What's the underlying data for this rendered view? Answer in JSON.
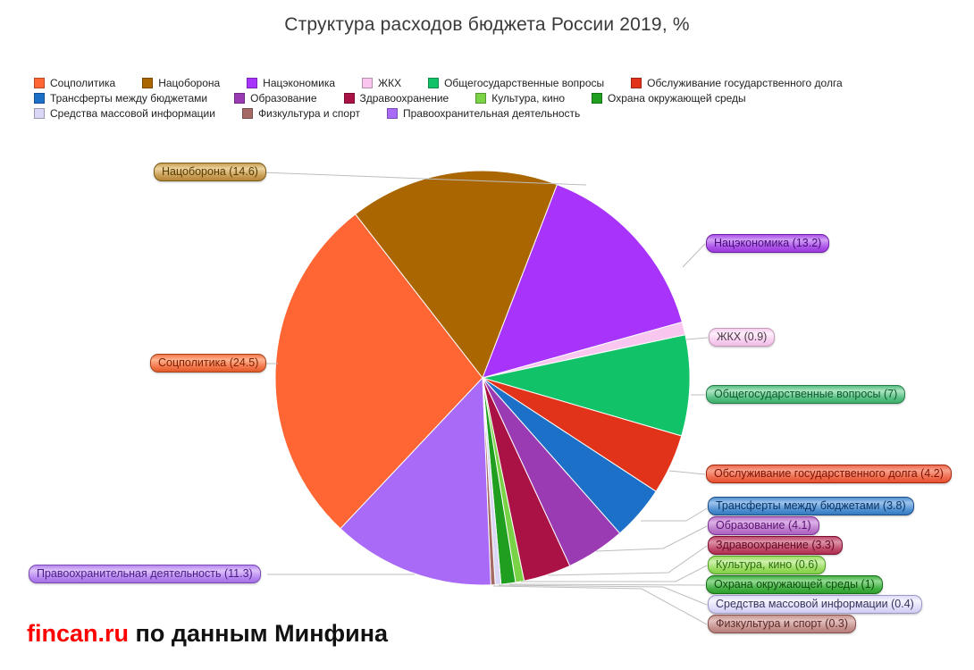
{
  "title": "Структура расходов бюджета России 2019, %",
  "footer": {
    "brand": "fincan.ru",
    "text": " по данным Минфина",
    "brand_color": "#FF0000"
  },
  "chart_data": {
    "type": "pie",
    "title": "Структура расходов бюджета России 2019, %",
    "unit": "%",
    "direction": "clockwise",
    "start_angle_deg": 223.3,
    "values_sum": 89.2,
    "legend_rows": [
      [
        0,
        1,
        2,
        3,
        4,
        5
      ],
      [
        6,
        7,
        8,
        9,
        10
      ],
      [
        11,
        12,
        13
      ]
    ],
    "slices": [
      {
        "name": "Соцполитика",
        "value": 24.5,
        "color": "#FF6633",
        "pill": {
          "light": "#FFB491",
          "base": "#F4764B",
          "dark": "#E05A2B",
          "border": "#A84316",
          "text": "#7E2000"
        }
      },
      {
        "name": "Нацоборона",
        "value": 14.6,
        "color": "#AA6600",
        "pill": {
          "light": "#EBD39F",
          "base": "#C99E55",
          "dark": "#B58638",
          "border": "#7A5A14",
          "text": "#553A00"
        }
      },
      {
        "name": "Нацэкономика",
        "value": 13.2,
        "color": "#A833FA",
        "pill": {
          "light": "#D2A1F6",
          "base": "#AC52E8",
          "dark": "#9A3BDB",
          "border": "#6E1FA5",
          "text": "#460B78"
        }
      },
      {
        "name": "ЖКХ",
        "value": 0.9,
        "color": "#F9C6F0",
        "pill": {
          "light": "#FDEFFA",
          "base": "#F7CDEF",
          "dark": "#EFBCE4",
          "border": "#C39BB8",
          "text": "#4A3A46"
        }
      },
      {
        "name": "Общегосударственные вопросы",
        "value": 7,
        "color": "#12C269",
        "pill": {
          "light": "#AEE5C4",
          "base": "#57BF82",
          "dark": "#3FAE6C",
          "border": "#237E4A",
          "text": "#0B5A2E"
        }
      },
      {
        "name": "Обслуживание государственного долга",
        "value": 4.2,
        "color": "#E0331A",
        "pill": {
          "light": "#F7A28C",
          "base": "#EF6A4C",
          "dark": "#E5502F",
          "border": "#A2270E",
          "text": "#7E1200"
        }
      },
      {
        "name": "Трансферты между бюджетами",
        "value": 3.8,
        "color": "#1C70C8",
        "pill": {
          "light": "#9CC3EA",
          "base": "#5191D2",
          "dark": "#3479BE",
          "border": "#1C4E86",
          "text": "#0A3464"
        }
      },
      {
        "name": "Образование",
        "value": 4.1,
        "color": "#9B3BB4",
        "pill": {
          "light": "#DDB2E8",
          "base": "#BC7BCC",
          "dark": "#AC62BE",
          "border": "#7C3092",
          "text": "#5A1270"
        }
      },
      {
        "name": "Здравоохранение",
        "value": 3.3,
        "color": "#AA1144",
        "pill": {
          "light": "#DB93A8",
          "base": "#C04A6A",
          "dark": "#AE2F52",
          "border": "#7C0E30",
          "text": "#640822"
        }
      },
      {
        "name": "Культура, кино",
        "value": 0.6,
        "color": "#7AD247",
        "pill": {
          "light": "#CEF0AE",
          "base": "#9ADC60",
          "dark": "#84CE48",
          "border": "#4F9E22",
          "text": "#2A6E0A"
        }
      },
      {
        "name": "Охрана окружающей среды",
        "value": 1,
        "color": "#1F9E1F",
        "pill": {
          "light": "#94DA94",
          "base": "#44B044",
          "dark": "#2D9E2D",
          "border": "#176E17",
          "text": "#0A4E0A"
        }
      },
      {
        "name": "Средства массовой информации",
        "value": 0.4,
        "color": "#D9D6F6",
        "pill": {
          "light": "#F4F3FD",
          "base": "#DEDCF8",
          "dark": "#CECBF0",
          "border": "#9A98C6",
          "text": "#34345C"
        }
      },
      {
        "name": "Физкультура и спорт",
        "value": 0.3,
        "color": "#A66A66",
        "pill": {
          "light": "#E3C2C0",
          "base": "#C69490",
          "dark": "#B87E7A",
          "border": "#86504C",
          "text": "#5C2A26"
        }
      },
      {
        "name": "Правоохранительная деятельность",
        "value": 11.3,
        "color": "#A96BF7",
        "pill": {
          "light": "#DCC2FA",
          "base": "#B788F0",
          "dark": "#A571E6",
          "border": "#7A48B6",
          "text": "#4A1A86"
        }
      }
    ]
  }
}
